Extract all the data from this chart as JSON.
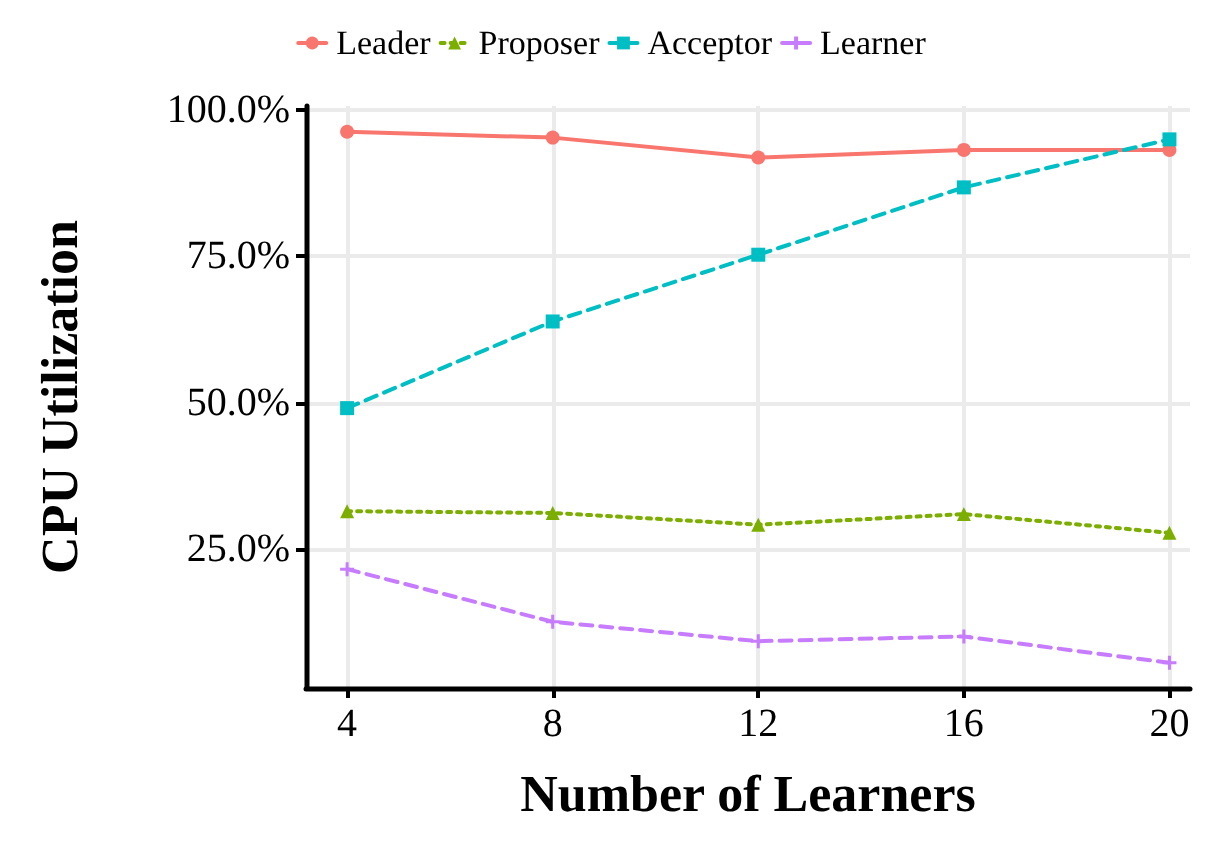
{
  "chart_data": {
    "type": "line",
    "xlabel": "Number of Learners",
    "ylabel": "CPU Utilization",
    "x": [
      4,
      8,
      12,
      16,
      20
    ],
    "series": [
      {
        "name": "Leader",
        "color": "#f8766d",
        "marker": "circle",
        "line_style": "solid",
        "values": [
          96.3,
          95.3,
          91.9,
          93.2,
          93.2
        ]
      },
      {
        "name": "Proposer",
        "color": "#7cae00",
        "marker": "triangle",
        "line_style": "dotted",
        "values": [
          31.5,
          31.2,
          29.2,
          31.0,
          27.8
        ]
      },
      {
        "name": "Acceptor",
        "color": "#00bfc4",
        "marker": "square",
        "line_style": "dashed",
        "values": [
          49.1,
          63.9,
          75.3,
          86.8,
          95.0
        ]
      },
      {
        "name": "Learner",
        "color": "#c77cff",
        "marker": "cross",
        "line_style": "dashed",
        "values": [
          21.6,
          12.6,
          9.3,
          10.1,
          5.6
        ]
      }
    ],
    "xlim": [
      3.2,
      20.4
    ],
    "xticks": [
      4,
      8,
      12,
      16,
      20
    ],
    "ylim": [
      1.3,
      100.7
    ],
    "yticks": [
      {
        "value": 25,
        "label": "25.0%"
      },
      {
        "value": 50,
        "label": "50.0%"
      },
      {
        "value": 75,
        "label": "75.0%"
      },
      {
        "value": 100,
        "label": "100.0%"
      }
    ],
    "grid": true,
    "legend": "top"
  }
}
